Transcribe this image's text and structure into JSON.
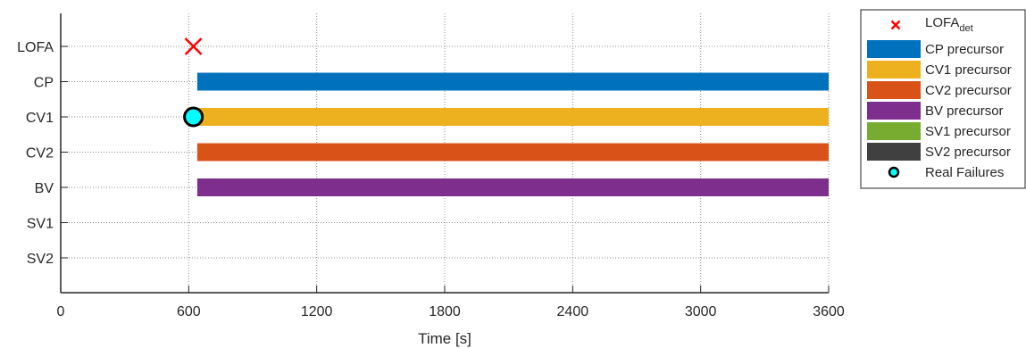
{
  "chart_data": {
    "type": "bar",
    "subtype": "horizontal-timeline",
    "title": "",
    "xlabel": "Time [s]",
    "ylabel": "",
    "xlim": [
      0,
      3600
    ],
    "xticks": [
      0,
      600,
      1200,
      1800,
      2400,
      3000,
      3600
    ],
    "xtick_labels": [
      "0",
      "600",
      "1200",
      "1800",
      "2400",
      "3000",
      "3600"
    ],
    "categories": [
      "LOFA",
      "CP",
      "CV1",
      "CV2",
      "BV",
      "SV1",
      "SV2"
    ],
    "grid": true,
    "legend_position": "outside-right",
    "series": [
      {
        "name": "CP precursor",
        "category": "CP",
        "start": 640,
        "end": 3600,
        "color": "#0072BD"
      },
      {
        "name": "CV1 precursor",
        "category": "CV1",
        "start": 622,
        "end": 3600,
        "color": "#EDB120"
      },
      {
        "name": "CV2 precursor",
        "category": "CV2",
        "start": 640,
        "end": 3600,
        "color": "#D95319"
      },
      {
        "name": "BV precursor",
        "category": "BV",
        "start": 640,
        "end": 3600,
        "color": "#7E2F8E"
      },
      {
        "name": "SV1 precursor",
        "category": "SV1",
        "start": null,
        "end": null,
        "color": "#77AC30"
      },
      {
        "name": "SV2 precursor",
        "category": "SV2",
        "start": null,
        "end": null,
        "color": "#404040"
      }
    ],
    "markers": [
      {
        "name": "LOFA",
        "name_sub": "det",
        "category": "LOFA",
        "x": 622,
        "symbol": "x",
        "color": "#FF0000"
      },
      {
        "name": "Real Failures",
        "category": "CV1",
        "x": 622,
        "symbol": "circle",
        "color": "#00FFFF"
      }
    ]
  }
}
